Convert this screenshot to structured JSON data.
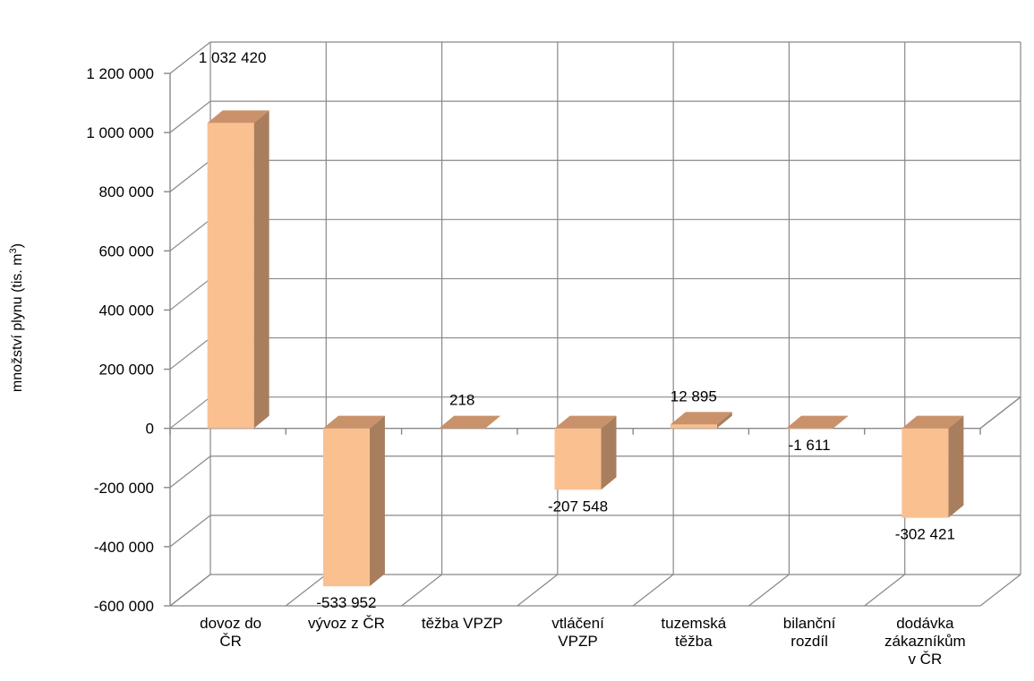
{
  "chart_data": {
    "type": "bar",
    "title": "",
    "xlabel": "",
    "ylabel": "množství plynu (tis. m",
    "ylabel_superscript": "3",
    "ylabel_suffix": ")",
    "ylim": [
      -600000,
      1200000
    ],
    "yticks": [
      -600000,
      -400000,
      -200000,
      0,
      200000,
      400000,
      600000,
      800000,
      1000000,
      1200000
    ],
    "ytick_labels": [
      "-600 000",
      "-400 000",
      "-200 000",
      "0",
      "200 000",
      "400 000",
      "600 000",
      "800 000",
      "1 000 000",
      "1 200 000"
    ],
    "grid": true,
    "legend": "none",
    "categories": [
      [
        "dovoz do",
        "ČR"
      ],
      [
        "vývoz z ČR"
      ],
      [
        "těžba VPZP"
      ],
      [
        "vtláčení",
        "VPZP"
      ],
      [
        "tuzemská",
        "těžba"
      ],
      [
        "bilanční",
        "rozdíl"
      ],
      [
        "dodávka",
        "zákazníkům",
        "v ČR"
      ]
    ],
    "values": [
      1032420,
      -533952,
      218,
      -207548,
      12895,
      -1611,
      -302421
    ],
    "value_labels": [
      "1 032 420",
      "-533 952",
      "218",
      "-207 548",
      "12 895",
      "-1 611",
      "-302 421"
    ],
    "colors": {
      "bar_front": "#FAC090",
      "bar_side": "#A87E5E",
      "bar_top": "#C9926B",
      "grid": "#888888",
      "axis": "#888888"
    }
  }
}
